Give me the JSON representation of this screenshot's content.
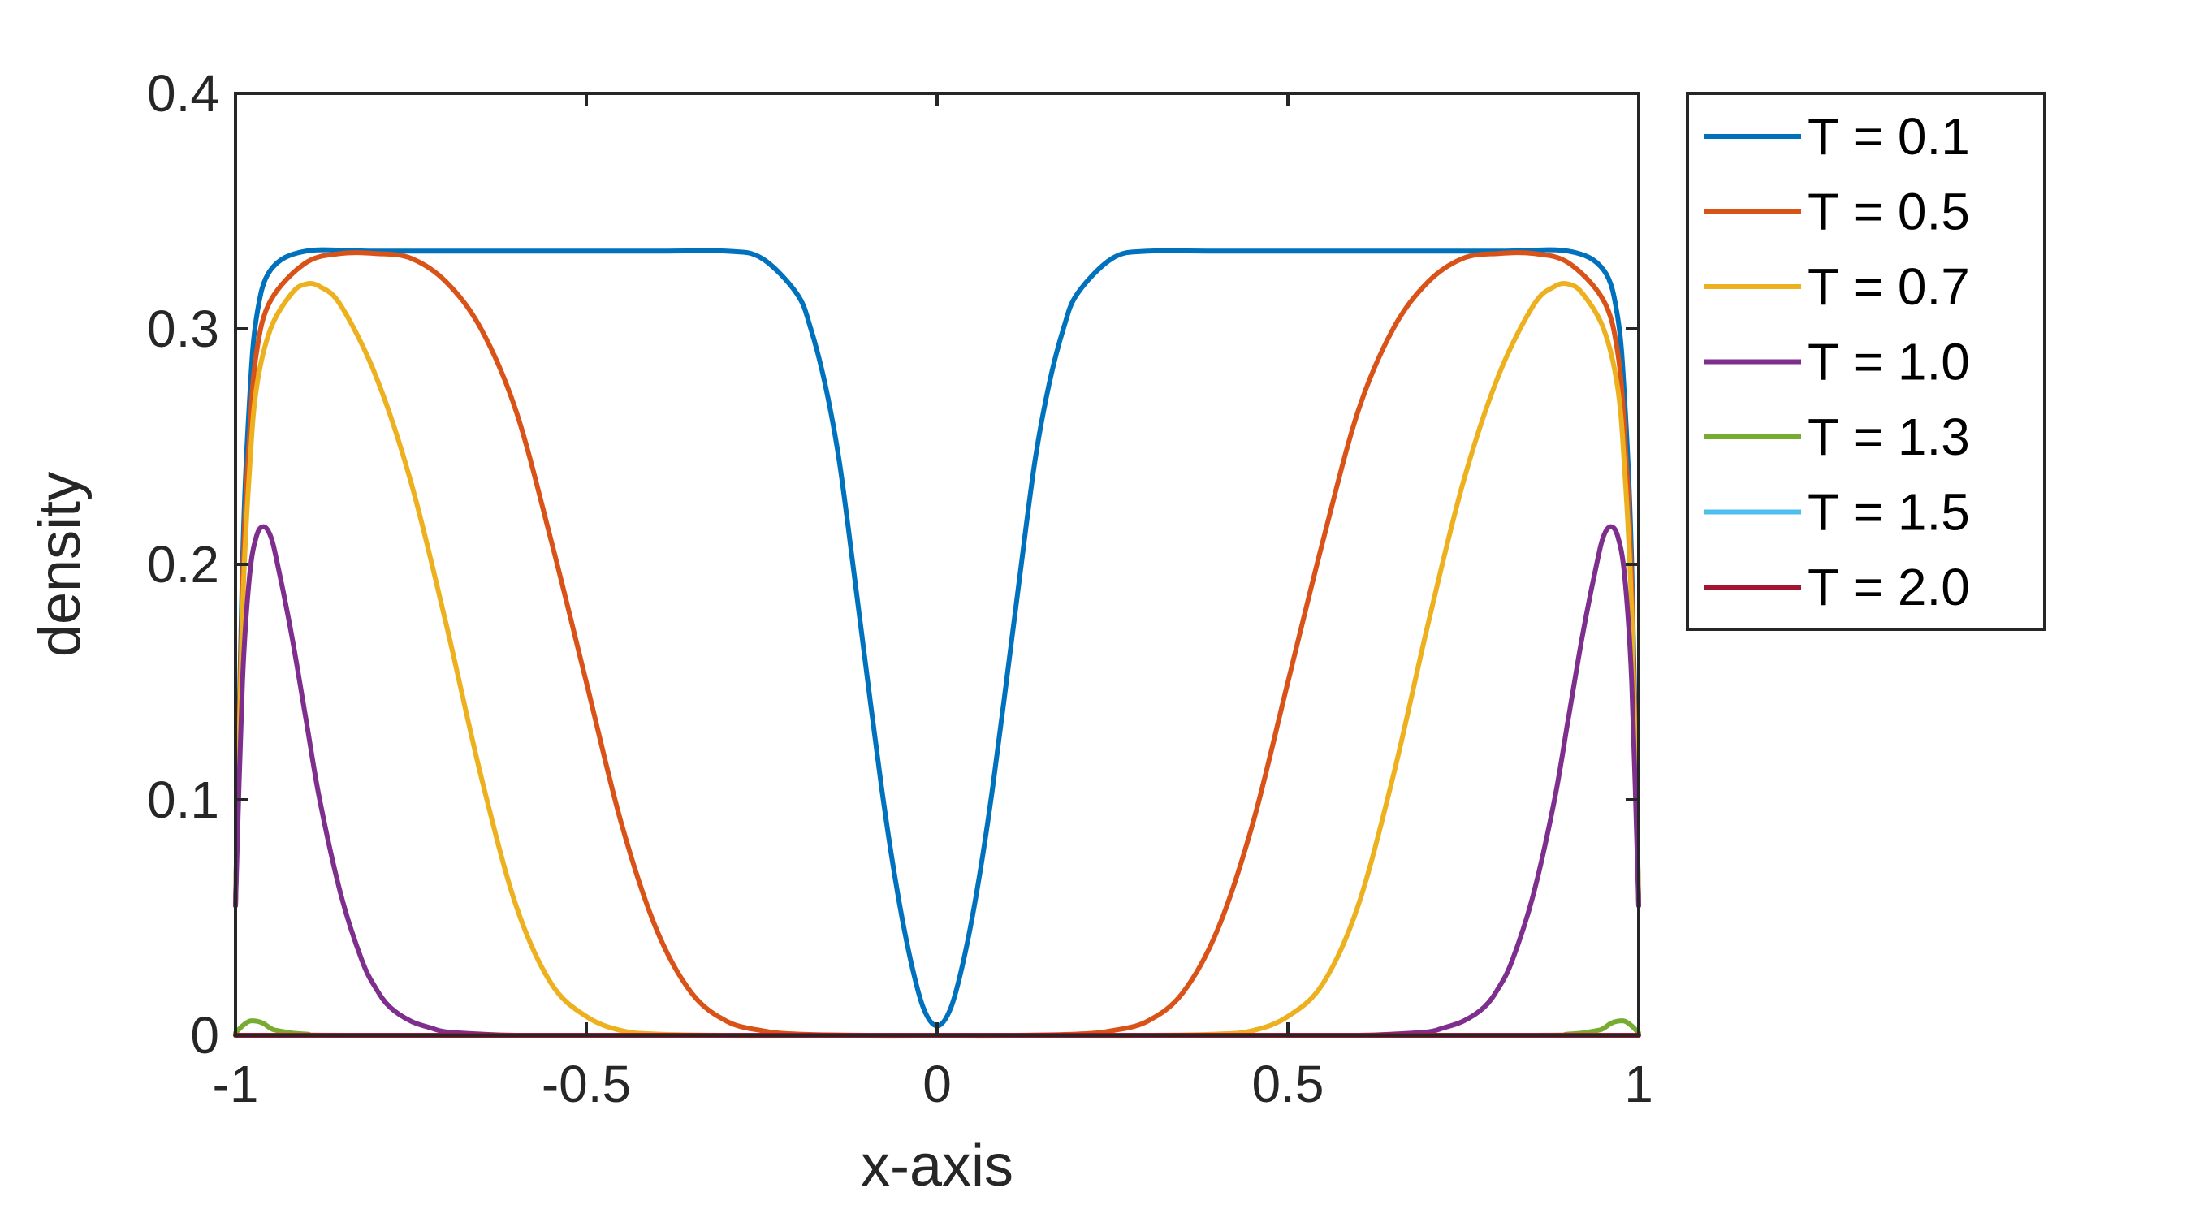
{
  "chart_data": {
    "type": "line",
    "xlabel": "x-axis",
    "ylabel": "density",
    "xlim": [
      -1,
      1
    ],
    "ylim": [
      0,
      0.4
    ],
    "xticks": [
      -1,
      -0.5,
      0,
      0.5,
      1
    ],
    "xtick_labels": [
      "-1",
      "-0.5",
      "0",
      "0.5",
      "1"
    ],
    "yticks": [
      0,
      0.1,
      0.2,
      0.3,
      0.4
    ],
    "ytick_labels": [
      "0",
      "0.1",
      "0.2",
      "0.3",
      "0.4"
    ],
    "grid": false,
    "legend_position": "outside-right",
    "series": [
      {
        "name": "T = 0.1",
        "color": "#0072BD",
        "x": [
          -1,
          -0.99,
          -0.98,
          -0.97,
          -0.95,
          -0.9,
          -0.8,
          -0.6,
          -0.4,
          -0.3,
          -0.25,
          -0.2,
          -0.18,
          -0.16,
          -0.14,
          -0.12,
          -0.1,
          -0.08,
          -0.06,
          -0.04,
          -0.02,
          0,
          0.02,
          0.04,
          0.06,
          0.08,
          0.1,
          0.12,
          0.14,
          0.16,
          0.18,
          0.2,
          0.25,
          0.3,
          0.4,
          0.6,
          0.8,
          0.9,
          0.95,
          0.97,
          0.98,
          0.99,
          1
        ],
        "y": [
          0.055,
          0.2,
          0.27,
          0.305,
          0.325,
          0.333,
          0.333,
          0.333,
          0.333,
          0.333,
          0.33,
          0.315,
          0.3,
          0.277,
          0.245,
          0.2,
          0.153,
          0.107,
          0.067,
          0.035,
          0.012,
          0.004,
          0.012,
          0.035,
          0.067,
          0.107,
          0.153,
          0.2,
          0.245,
          0.277,
          0.3,
          0.315,
          0.33,
          0.333,
          0.333,
          0.333,
          0.333,
          0.333,
          0.325,
          0.305,
          0.27,
          0.2,
          0.055
        ]
      },
      {
        "name": "T = 0.5",
        "color": "#D95319",
        "x": [
          -1,
          -0.99,
          -0.98,
          -0.97,
          -0.95,
          -0.9,
          -0.85,
          -0.8,
          -0.75,
          -0.7,
          -0.65,
          -0.6,
          -0.55,
          -0.5,
          -0.45,
          -0.4,
          -0.35,
          -0.3,
          -0.25,
          -0.2,
          -0.1,
          0,
          0.1,
          0.2,
          0.25,
          0.3,
          0.35,
          0.4,
          0.45,
          0.5,
          0.55,
          0.6,
          0.65,
          0.7,
          0.75,
          0.8,
          0.85,
          0.9,
          0.95,
          0.97,
          0.98,
          0.99,
          1
        ],
        "y": [
          0.055,
          0.19,
          0.255,
          0.29,
          0.312,
          0.328,
          0.332,
          0.332,
          0.33,
          0.32,
          0.3,
          0.265,
          0.21,
          0.15,
          0.09,
          0.045,
          0.018,
          0.006,
          0.002,
          0.0005,
          0,
          0,
          0,
          0.0005,
          0.002,
          0.006,
          0.018,
          0.045,
          0.09,
          0.15,
          0.21,
          0.265,
          0.3,
          0.32,
          0.33,
          0.332,
          0.332,
          0.328,
          0.312,
          0.29,
          0.255,
          0.19,
          0.055
        ]
      },
      {
        "name": "T = 0.7",
        "color": "#EDB120",
        "x": [
          -1,
          -0.99,
          -0.98,
          -0.97,
          -0.95,
          -0.92,
          -0.9,
          -0.88,
          -0.85,
          -0.8,
          -0.75,
          -0.7,
          -0.65,
          -0.6,
          -0.55,
          -0.5,
          -0.45,
          -0.4,
          -0.3,
          -0.2,
          0,
          0.2,
          0.3,
          0.4,
          0.45,
          0.5,
          0.55,
          0.6,
          0.65,
          0.7,
          0.75,
          0.8,
          0.85,
          0.88,
          0.9,
          0.92,
          0.95,
          0.97,
          0.98,
          0.99,
          1
        ],
        "y": [
          0.055,
          0.18,
          0.24,
          0.275,
          0.3,
          0.315,
          0.319,
          0.318,
          0.31,
          0.28,
          0.235,
          0.175,
          0.11,
          0.055,
          0.022,
          0.008,
          0.002,
          0.0005,
          0,
          0,
          0,
          0,
          0,
          0.0005,
          0.002,
          0.008,
          0.022,
          0.055,
          0.11,
          0.175,
          0.235,
          0.28,
          0.31,
          0.318,
          0.319,
          0.315,
          0.3,
          0.275,
          0.24,
          0.18,
          0.055
        ]
      },
      {
        "name": "T = 1.0",
        "color": "#7E2F8E",
        "x": [
          -1,
          -0.99,
          -0.98,
          -0.97,
          -0.96,
          -0.95,
          -0.94,
          -0.92,
          -0.9,
          -0.88,
          -0.85,
          -0.82,
          -0.8,
          -0.78,
          -0.75,
          -0.72,
          -0.7,
          -0.65,
          -0.6,
          -0.5,
          -0.3,
          0,
          0.3,
          0.5,
          0.6,
          0.65,
          0.7,
          0.72,
          0.75,
          0.78,
          0.8,
          0.82,
          0.85,
          0.88,
          0.9,
          0.92,
          0.94,
          0.95,
          0.96,
          0.97,
          0.98,
          0.99,
          1
        ],
        "y": [
          0.055,
          0.15,
          0.195,
          0.212,
          0.216,
          0.212,
          0.2,
          0.17,
          0.135,
          0.1,
          0.06,
          0.032,
          0.02,
          0.012,
          0.006,
          0.003,
          0.0015,
          0.0005,
          0,
          0,
          0,
          0,
          0,
          0,
          0,
          0.0005,
          0.0015,
          0.003,
          0.006,
          0.012,
          0.02,
          0.032,
          0.06,
          0.1,
          0.135,
          0.17,
          0.2,
          0.212,
          0.216,
          0.212,
          0.195,
          0.15,
          0.055
        ]
      },
      {
        "name": "T = 1.3",
        "color": "#77AC30",
        "x": [
          -1,
          -0.99,
          -0.98,
          -0.97,
          -0.96,
          -0.95,
          -0.94,
          -0.9,
          -0.8,
          0,
          0.8,
          0.9,
          0.94,
          0.95,
          0.96,
          0.97,
          0.98,
          0.99,
          1
        ],
        "y": [
          0.001,
          0.004,
          0.006,
          0.006,
          0.005,
          0.003,
          0.002,
          0.0005,
          0,
          0,
          0,
          0.0005,
          0.002,
          0.003,
          0.005,
          0.006,
          0.006,
          0.004,
          0.001
        ]
      },
      {
        "name": "T = 1.5",
        "color": "#4DBEEE",
        "x": [
          -1,
          0,
          1
        ],
        "y": [
          0,
          0,
          0
        ]
      },
      {
        "name": "T = 2.0",
        "color": "#A2142F",
        "x": [
          -1,
          0,
          1
        ],
        "y": [
          0,
          0,
          0
        ]
      }
    ]
  }
}
